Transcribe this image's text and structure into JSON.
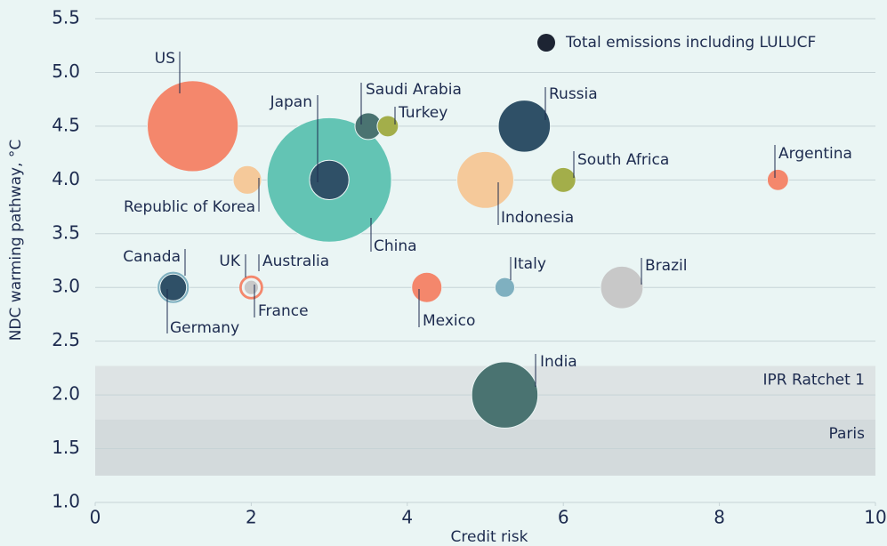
{
  "chart_data": {
    "type": "bubble",
    "x_label": "Credit risk",
    "y_label": "NDC warming pathway, °C",
    "legend_label": "Total emissions including LULUCF",
    "legend_color": "#1d2433",
    "xlim": [
      0,
      10
    ],
    "xticks": [
      0,
      2,
      4,
      6,
      8,
      10
    ],
    "ylim": [
      1.0,
      5.5
    ],
    "yticks": [
      {
        "value": 1.0,
        "label": "1.0"
      },
      1.5,
      {
        "value": 2.0,
        "label": "2.0"
      },
      2.5,
      {
        "value": 3.0,
        "label": "3.0"
      },
      3.5,
      {
        "value": 4.0,
        "label": "4.0"
      },
      4.5,
      {
        "value": 5.0,
        "label": "5.0"
      },
      5.5
    ],
    "grid": true,
    "bands": [
      {
        "label": "IPR Ratchet 1",
        "range": [
          1.25,
          2.27
        ],
        "color": "#dde3e4"
      },
      {
        "label": "Paris",
        "range": [
          1.25,
          1.77
        ],
        "color": "#d3dadc"
      }
    ],
    "points": [
      {
        "name": "US",
        "x": 1.25,
        "y": 4.5,
        "size": 6.4,
        "color": "#f4876c"
      },
      {
        "name": "Republic of Korea",
        "x": 1.95,
        "y": 4.0,
        "size": 0.63,
        "color": "#f5c99a"
      },
      {
        "name": "China",
        "x": 3.0,
        "y": 4.0,
        "size": 12.0,
        "color": "#63c4b4"
      },
      {
        "name": "Japan",
        "x": 3.0,
        "y": 4.0,
        "size": 1.2,
        "color": "#2f5067"
      },
      {
        "name": "Saudi Arabia",
        "x": 3.5,
        "y": 4.5,
        "size": 0.55,
        "color": "#4a7371"
      },
      {
        "name": "Turkey",
        "x": 3.75,
        "y": 4.5,
        "size": 0.35,
        "color": "#a3ae4a"
      },
      {
        "name": "Russia",
        "x": 5.5,
        "y": 4.5,
        "size": 2.1,
        "color": "#2f5067"
      },
      {
        "name": "Indonesia",
        "x": 5.0,
        "y": 4.0,
        "size": 2.5,
        "color": "#f5c99a"
      },
      {
        "name": "South Africa",
        "x": 6.0,
        "y": 4.0,
        "size": 0.48,
        "color": "#a3ae4a"
      },
      {
        "name": "Argentina",
        "x": 8.75,
        "y": 4.0,
        "size": 0.35,
        "color": "#f4876c"
      },
      {
        "name": "Canada",
        "x": 1.0,
        "y": 3.0,
        "size": 0.8,
        "color": "#7fb0c0"
      },
      {
        "name": "Germany",
        "x": 1.0,
        "y": 3.0,
        "size": 0.55,
        "color": "#2f5067"
      },
      {
        "name": "UK",
        "x": 2.0,
        "y": 3.0,
        "size": 0.41,
        "color": "#f4876c"
      },
      {
        "name": "Australia",
        "x": 2.0,
        "y": 3.0,
        "size": 0.25,
        "color": "#f2f2f2"
      },
      {
        "name": "France",
        "x": 2.0,
        "y": 3.0,
        "size": 0.16,
        "color": "#c8c8c8"
      },
      {
        "name": "Mexico",
        "x": 4.25,
        "y": 3.0,
        "size": 0.71,
        "color": "#f4876c"
      },
      {
        "name": "Italy",
        "x": 5.25,
        "y": 3.0,
        "size": 0.3,
        "color": "#7fb0c0"
      },
      {
        "name": "Brazil",
        "x": 6.75,
        "y": 3.0,
        "size": 1.4,
        "color": "#c8c8c8"
      },
      {
        "name": "India",
        "x": 5.25,
        "y": 2.0,
        "size": 3.4,
        "color": "#4a7371"
      }
    ]
  }
}
